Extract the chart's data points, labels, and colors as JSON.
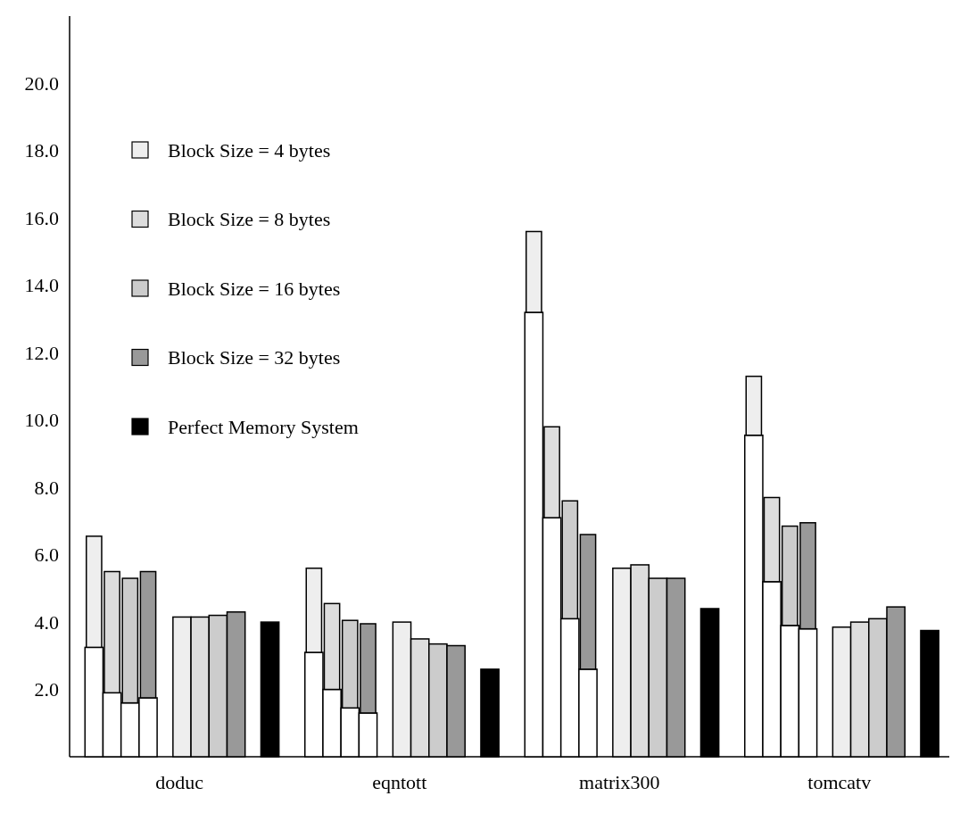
{
  "chart_data": {
    "type": "bar",
    "categories": [
      "doduc",
      "eqntott",
      "matrix300",
      "tomcatv"
    ],
    "ylim": [
      0,
      22
    ],
    "yticks": [
      {
        "value": 2,
        "label": "2.0"
      },
      {
        "value": 4,
        "label": "4.0"
      },
      {
        "value": 6,
        "label": "6.0"
      },
      {
        "value": 8,
        "label": "8.0"
      },
      {
        "value": 10,
        "label": "10.0"
      },
      {
        "value": 12,
        "label": "12.0"
      },
      {
        "value": 14,
        "label": "14.0"
      },
      {
        "value": 16,
        "label": "16.0"
      },
      {
        "value": 18,
        "label": "18.0"
      },
      {
        "value": 20,
        "label": "20.0"
      }
    ],
    "legend": "top left",
    "series": [
      {
        "color": "#ffffff",
        "values": [
          3.25,
          3.1,
          13.2,
          9.55
        ]
      },
      {
        "name": "Block Size = 4 bytes",
        "color": "#eeeeee",
        "values": [
          3.3,
          2.5,
          2.4,
          1.75
        ],
        "base": [
          3.25,
          3.1,
          13.2,
          9.55
        ]
      },
      {
        "color": "#ffffff",
        "values": [
          1.9,
          2.0,
          7.1,
          5.2
        ]
      },
      {
        "name": "Block Size = 8 bytes",
        "color": "#dddddd",
        "values": [
          3.6,
          2.55,
          2.7,
          2.5
        ],
        "base": [
          1.9,
          2.0,
          7.1,
          5.2
        ]
      },
      {
        "color": "#ffffff",
        "values": [
          1.6,
          1.45,
          4.1,
          3.9
        ]
      },
      {
        "name": "Block Size = 16 bytes",
        "color": "#cccccc",
        "values": [
          3.7,
          2.6,
          3.5,
          2.95
        ],
        "base": [
          1.6,
          1.45,
          4.1,
          3.9
        ]
      },
      {
        "color": "#ffffff",
        "values": [
          1.75,
          1.3,
          2.6,
          3.8
        ]
      },
      {
        "name": "Block Size = 32 bytes",
        "color": "#999999",
        "values": [
          3.75,
          2.65,
          4.0,
          3.15
        ],
        "base": [
          1.75,
          1.3,
          2.6,
          3.8
        ]
      },
      {
        "color": "#eeeeee",
        "values": [
          4.15,
          4.0,
          5.6,
          3.85
        ]
      },
      {
        "color": "#dddddd",
        "values": [
          4.15,
          3.5,
          5.7,
          4.0
        ]
      },
      {
        "color": "#cccccc",
        "values": [
          4.2,
          3.35,
          5.3,
          4.1
        ]
      },
      {
        "color": "#999999",
        "values": [
          4.3,
          3.3,
          5.3,
          4.45
        ]
      },
      {
        "name": "Perfect Memory System",
        "color": "#000000",
        "values": [
          4.0,
          2.6,
          4.4,
          3.75
        ]
      }
    ]
  }
}
